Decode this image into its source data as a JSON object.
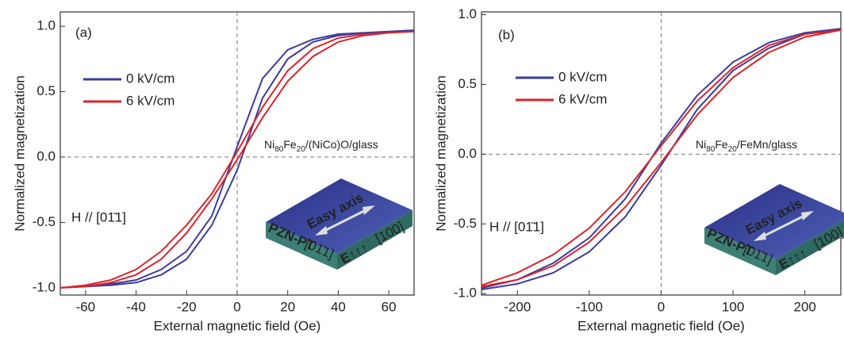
{
  "chart_data": [
    {
      "type": "line",
      "panel_label": "(a)",
      "xlabel": "External magnetic field (Oe)",
      "ylabel": "Normalized magnetization",
      "xlim": [
        -70,
        70
      ],
      "ylim": [
        -1.055,
        1.11
      ],
      "xticks": [
        -60,
        -40,
        -20,
        0,
        20,
        40,
        60
      ],
      "yticks": [
        {
          "value": -1,
          "label": "-1.0"
        },
        -0.5,
        {
          "value": 0,
          "label": "0.0"
        },
        0.5,
        {
          "value": 1,
          "label": "1.0"
        }
      ],
      "sample_label": [
        {
          "text": "Ni"
        },
        {
          "text": "80",
          "sub": true
        },
        {
          "text": "Fe"
        },
        {
          "text": "20",
          "sub": true
        },
        {
          "text": "/(NiCo)O/glass"
        }
      ],
      "orientation_label": "H // [01̄1]",
      "inset": {
        "axis": "Easy axis",
        "material": "PZN-PT",
        "direction": "[01̄1]",
        "field": "E↑↑↑",
        "direction2": "[100]"
      },
      "series": [
        {
          "name": "0  kV/cm",
          "color": "#3b3b9e",
          "x": [
            -70,
            -60,
            -50,
            -40,
            -30,
            -20,
            -10,
            0,
            10,
            20,
            30,
            40,
            50,
            60,
            70,
            70,
            60,
            50,
            40,
            30,
            20,
            10,
            0,
            -10,
            -20,
            -30,
            -40,
            -50,
            -60,
            -70
          ],
          "values": [
            -1.0,
            -0.99,
            -0.98,
            -0.96,
            -0.9,
            -0.78,
            -0.52,
            -0.1,
            0.45,
            0.75,
            0.88,
            0.93,
            0.95,
            0.96,
            0.97,
            0.97,
            0.96,
            0.95,
            0.94,
            0.9,
            0.82,
            0.6,
            0.08,
            -0.45,
            -0.72,
            -0.86,
            -0.94,
            -0.97,
            -0.99,
            -1.0
          ]
        },
        {
          "name": "6  kV/cm",
          "color": "#d8262c",
          "x": [
            -70,
            -60,
            -50,
            -40,
            -30,
            -20,
            -10,
            0,
            10,
            20,
            30,
            40,
            50,
            60,
            70,
            70,
            60,
            50,
            40,
            30,
            20,
            10,
            0,
            -10,
            -20,
            -30,
            -40,
            -50,
            -60,
            -70
          ],
          "values": [
            -1.0,
            -0.99,
            -0.96,
            -0.9,
            -0.78,
            -0.58,
            -0.32,
            -0.02,
            0.3,
            0.58,
            0.77,
            0.88,
            0.93,
            0.95,
            0.96,
            0.96,
            0.95,
            0.94,
            0.91,
            0.83,
            0.66,
            0.38,
            0.04,
            -0.28,
            -0.52,
            -0.72,
            -0.86,
            -0.94,
            -0.98,
            -1.0
          ]
        }
      ]
    },
    {
      "type": "line",
      "panel_label": "(b)",
      "xlabel": "External magnetic field (Oe)",
      "ylabel": "Normalized magnetization",
      "xlim": [
        -250,
        250
      ],
      "ylim": [
        -1.01,
        1.02
      ],
      "xticks": [
        -200,
        -100,
        0,
        100,
        200
      ],
      "yticks": [
        {
          "value": -1,
          "label": "-1.0"
        },
        -0.5,
        {
          "value": 0,
          "label": "0.0"
        },
        0.5,
        {
          "value": 1,
          "label": "1.0"
        }
      ],
      "sample_label": [
        {
          "text": "Ni"
        },
        {
          "text": "80",
          "sub": true
        },
        {
          "text": "Fe"
        },
        {
          "text": "20",
          "sub": true
        },
        {
          "text": "/FeMn/glass"
        }
      ],
      "orientation_label": "H // [01̄1]",
      "inset": {
        "axis": "Easy axis",
        "material": "PZN-PT",
        "direction": "[01̄1]",
        "field": "E↑↑↑",
        "direction2": "[100]"
      },
      "series": [
        {
          "name": "0 kV/cm",
          "color": "#3b3b9e",
          "x": [
            -250,
            -200,
            -150,
            -100,
            -50,
            0,
            50,
            100,
            150,
            200,
            250,
            250,
            200,
            150,
            100,
            50,
            0,
            -50,
            -100,
            -150,
            -200,
            -250
          ],
          "values": [
            -0.97,
            -0.93,
            -0.85,
            -0.7,
            -0.45,
            -0.08,
            0.32,
            0.6,
            0.76,
            0.86,
            0.9,
            0.9,
            0.87,
            0.8,
            0.66,
            0.42,
            0.08,
            -0.32,
            -0.6,
            -0.78,
            -0.9,
            -0.96
          ]
        },
        {
          "name": "6 kV/cm",
          "color": "#d8262c",
          "x": [
            -250,
            -200,
            -150,
            -100,
            -50,
            0,
            50,
            100,
            150,
            200,
            250,
            250,
            200,
            150,
            100,
            50,
            0,
            -50,
            -100,
            -150,
            -200,
            -250
          ],
          "values": [
            -0.95,
            -0.9,
            -0.8,
            -0.63,
            -0.38,
            -0.06,
            0.28,
            0.55,
            0.73,
            0.84,
            0.89,
            0.89,
            0.86,
            0.78,
            0.62,
            0.38,
            0.06,
            -0.27,
            -0.53,
            -0.72,
            -0.85,
            -0.94
          ]
        }
      ]
    }
  ]
}
